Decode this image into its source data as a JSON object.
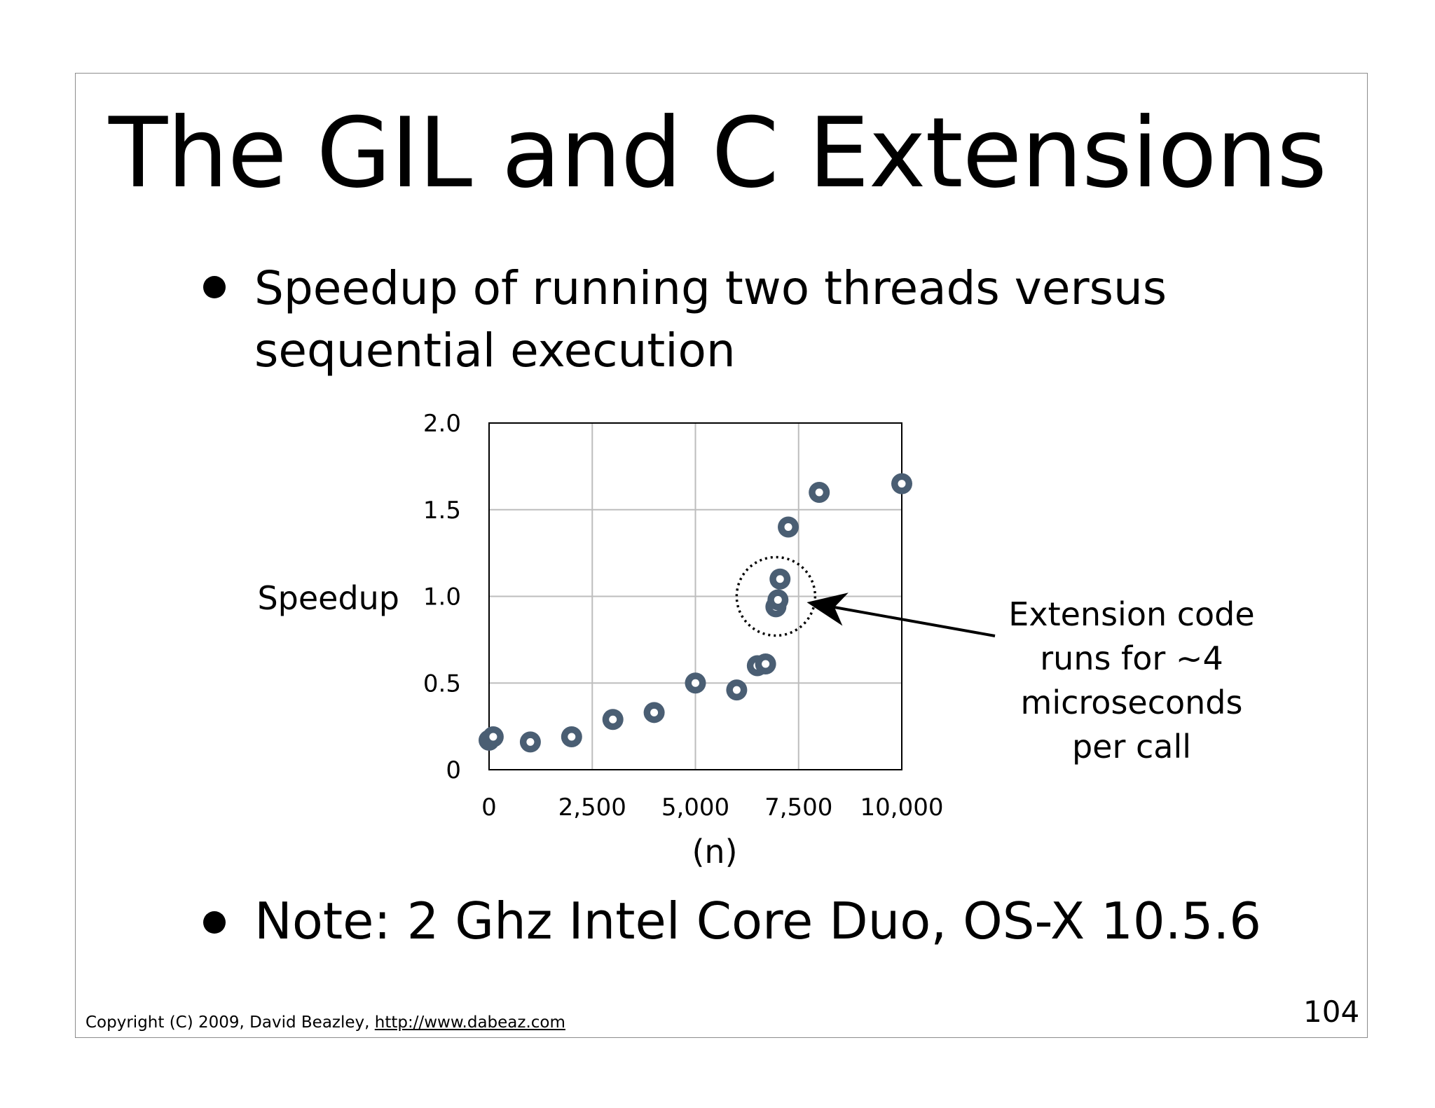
{
  "slide": {
    "title": "The GIL and C Extensions",
    "bullet1_line1": "Speedup of running two threads versus",
    "bullet1_line2": "sequential execution",
    "bullet2": "Note: 2 Ghz Intel Core Duo, OS-X 10.5.6",
    "footer_text": "Copyright (C) 2009,  David Beazley, ",
    "footer_link": "http://www.dabeaz.com",
    "page_number": "104",
    "callout": [
      "Extension code",
      "runs for ~4",
      "microseconds",
      "per call"
    ]
  },
  "chart_data": {
    "type": "scatter",
    "title": "",
    "xlabel": "(n)",
    "ylabel": "Speedup",
    "xlim": [
      0,
      10000
    ],
    "ylim": [
      0,
      2.0
    ],
    "x_ticks": [
      "0",
      "2,500",
      "5,000",
      "7,500",
      "10,000"
    ],
    "y_ticks": [
      "0",
      "0.5",
      "1.0",
      "1.5",
      "2.0"
    ],
    "grid": true,
    "marker_color": "#4a5e73",
    "points": [
      {
        "x": 0,
        "y": 0.17
      },
      {
        "x": 100,
        "y": 0.19
      },
      {
        "x": 1000,
        "y": 0.16
      },
      {
        "x": 2000,
        "y": 0.19
      },
      {
        "x": 3000,
        "y": 0.29
      },
      {
        "x": 4000,
        "y": 0.33
      },
      {
        "x": 5000,
        "y": 0.5
      },
      {
        "x": 6000,
        "y": 0.46
      },
      {
        "x": 6500,
        "y": 0.6
      },
      {
        "x": 6700,
        "y": 0.61
      },
      {
        "x": 6950,
        "y": 0.94
      },
      {
        "x": 7000,
        "y": 0.98
      },
      {
        "x": 7050,
        "y": 1.1
      },
      {
        "x": 7250,
        "y": 1.4
      },
      {
        "x": 8000,
        "y": 1.6
      },
      {
        "x": 10000,
        "y": 1.65
      }
    ],
    "annotation": "Extension code runs for ~4 microseconds per call"
  }
}
